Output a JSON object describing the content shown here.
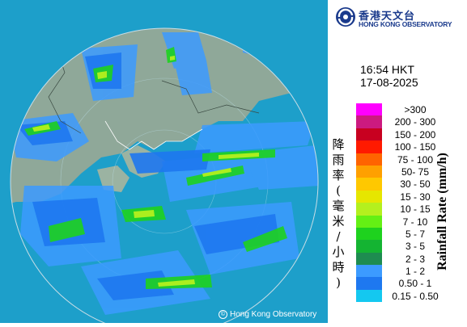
{
  "header": {
    "org_name_zh": "香港天文台",
    "org_name_en": "HONG KONG OBSERVATORY",
    "time": "16:54 HKT",
    "date": "17-08-2025"
  },
  "legend": {
    "title_en": "Rainfall Rate (mm/h)",
    "title_zh": "降雨率(毫米/小時)",
    "classes": [
      {
        "label": ">300",
        "color": "#ff00ff"
      },
      {
        "label": "200 - 300",
        "color": "#cc1a80"
      },
      {
        "label": "150 - 200",
        "color": "#c80020"
      },
      {
        "label": "100 - 150",
        "color": "#ff1a00"
      },
      {
        "label": "75 - 100",
        "color": "#ff6400"
      },
      {
        "label": "50- 75",
        "color": "#ffa000"
      },
      {
        "label": "30 - 50",
        "color": "#ffc800"
      },
      {
        "label": "15 - 30",
        "color": "#e6e600"
      },
      {
        "label": "10 - 15",
        "color": "#b4f01e"
      },
      {
        "label": "7 - 10",
        "color": "#64f014"
      },
      {
        "label": "5 - 7",
        "color": "#1ed21e"
      },
      {
        "label": "3 - 5",
        "color": "#14b432"
      },
      {
        "label": "2 - 3",
        "color": "#1e8c50"
      },
      {
        "label": "1 - 2",
        "color": "#3c9bff"
      },
      {
        "label": "0.50 - 1",
        "color": "#1e78f0"
      },
      {
        "label": "0.15 - 0.50",
        "color": "#14c8f0"
      }
    ]
  },
  "map": {
    "copyright": "Hong Kong Observatory"
  }
}
